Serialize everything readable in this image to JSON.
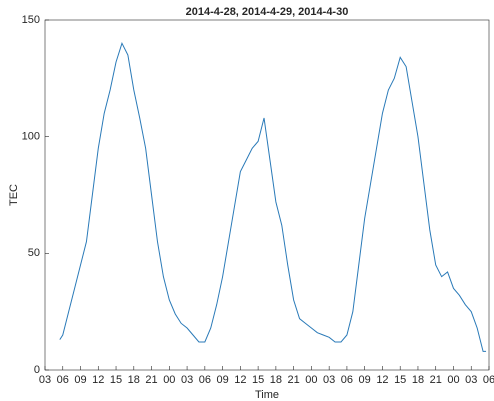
{
  "chart_data": {
    "type": "line",
    "title": "2014-4-28, 2014-4-29, 2014-4-30",
    "x_label": "Time",
    "y_label": "TEC",
    "xlim": [
      3,
      78
    ],
    "ylim": [
      0,
      150
    ],
    "xticks": [
      {
        "value": 3,
        "label": "03"
      },
      {
        "value": 6,
        "label": "06"
      },
      {
        "value": 9,
        "label": "09"
      },
      {
        "value": 12,
        "label": "12"
      },
      {
        "value": 15,
        "label": "15"
      },
      {
        "value": 18,
        "label": "18"
      },
      {
        "value": 21,
        "label": "21"
      },
      {
        "value": 24,
        "label": "00"
      },
      {
        "value": 27,
        "label": "03"
      },
      {
        "value": 30,
        "label": "06"
      },
      {
        "value": 33,
        "label": "09"
      },
      {
        "value": 36,
        "label": "12"
      },
      {
        "value": 39,
        "label": "15"
      },
      {
        "value": 42,
        "label": "18"
      },
      {
        "value": 45,
        "label": "21"
      },
      {
        "value": 48,
        "label": "00"
      },
      {
        "value": 51,
        "label": "03"
      },
      {
        "value": 54,
        "label": "06"
      },
      {
        "value": 57,
        "label": "09"
      },
      {
        "value": 60,
        "label": "12"
      },
      {
        "value": 63,
        "label": "15"
      },
      {
        "value": 66,
        "label": "18"
      },
      {
        "value": 69,
        "label": "21"
      },
      {
        "value": 72,
        "label": "00"
      },
      {
        "value": 75,
        "label": "03"
      },
      {
        "value": 78,
        "label": "06"
      }
    ],
    "yticks": [
      0,
      50,
      100,
      150
    ],
    "x": [
      5.5,
      6,
      7,
      8,
      9,
      10,
      11,
      12,
      13,
      14,
      15,
      16,
      17,
      18,
      19,
      20,
      21,
      22,
      23,
      24,
      25,
      26,
      27,
      28,
      29,
      30,
      31,
      32,
      33,
      34,
      35,
      36,
      37,
      38,
      39,
      40,
      41,
      42,
      43,
      44,
      45,
      46,
      47,
      48,
      49,
      50,
      51,
      52,
      53,
      54,
      55,
      56,
      57,
      58,
      59,
      60,
      61,
      62,
      63,
      64,
      65,
      66,
      67,
      68,
      69,
      70,
      71,
      72,
      73,
      74,
      75,
      76,
      77,
      77.5
    ],
    "series": [
      {
        "color": "#2a7ab8",
        "values": [
          13,
          15,
          25,
          35,
          45,
          55,
          75,
          95,
          110,
          120,
          132,
          140,
          135,
          120,
          108,
          95,
          75,
          55,
          40,
          30,
          24,
          20,
          18,
          15,
          12,
          12,
          18,
          28,
          40,
          55,
          70,
          85,
          90,
          95,
          98,
          108,
          90,
          72,
          62,
          45,
          30,
          22,
          20,
          18,
          16,
          15,
          14,
          12,
          12,
          15,
          25,
          45,
          65,
          80,
          95,
          110,
          120,
          125,
          134,
          130,
          115,
          100,
          80,
          60,
          45,
          40,
          42,
          35,
          32,
          28,
          25,
          18,
          8,
          8
        ]
      }
    ]
  }
}
